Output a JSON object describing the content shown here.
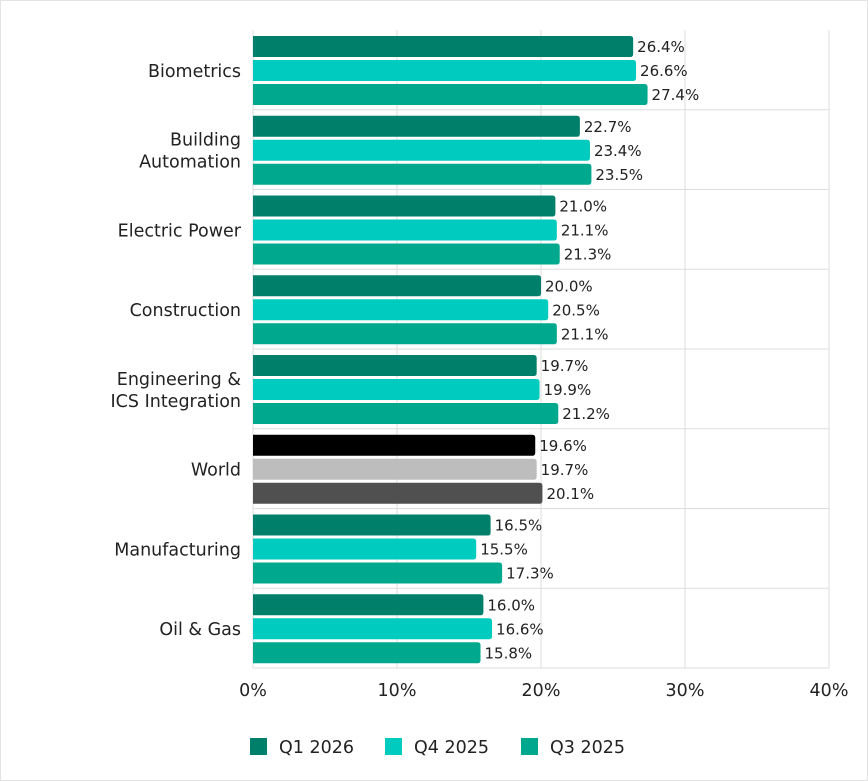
{
  "chart_data": {
    "type": "bar",
    "orientation": "horizontal",
    "categories": [
      [
        "Biometrics"
      ],
      [
        "Building",
        "Automation"
      ],
      [
        "Electric Power"
      ],
      [
        "Construction"
      ],
      [
        "Engineering &",
        "ICS Integration"
      ],
      [
        "World"
      ],
      [
        "Manufacturing"
      ],
      [
        "Oil & Gas"
      ]
    ],
    "series": [
      {
        "name": "Q1 2026",
        "color": "#00806b",
        "values": [
          26.4,
          22.7,
          21.0,
          20.0,
          19.7,
          19.6,
          16.5,
          16.0
        ],
        "labels": [
          "26.4%",
          "22.7%",
          "21.0%",
          "20.0%",
          "19.7%",
          "19.6%",
          "16.5%",
          "16.0%"
        ]
      },
      {
        "name": "Q4 2025",
        "color": "#00cbbf",
        "values": [
          26.6,
          23.4,
          21.1,
          20.5,
          19.9,
          19.7,
          15.5,
          16.6
        ],
        "labels": [
          "26.6%",
          "23.4%",
          "21.1%",
          "20.5%",
          "19.9%",
          "19.7%",
          "15.5%",
          "16.6%"
        ]
      },
      {
        "name": "Q3 2025",
        "color": "#00a88e",
        "values": [
          27.4,
          23.5,
          21.3,
          21.1,
          21.2,
          20.1,
          17.3,
          15.8
        ],
        "labels": [
          "27.4%",
          "23.5%",
          "21.3%",
          "21.1%",
          "21.2%",
          "20.1%",
          "17.3%",
          "15.8%"
        ]
      }
    ],
    "highlight": {
      "category_index": 5,
      "colors": [
        "#000000",
        "#bdbdbd",
        "#505050"
      ]
    },
    "xlim": [
      0,
      40
    ],
    "x_ticks": [
      0,
      10,
      20,
      30,
      40
    ],
    "x_tick_labels": [
      "0%",
      "10%",
      "20%",
      "30%",
      "40%"
    ],
    "grid": true,
    "legend_position": "bottom"
  }
}
